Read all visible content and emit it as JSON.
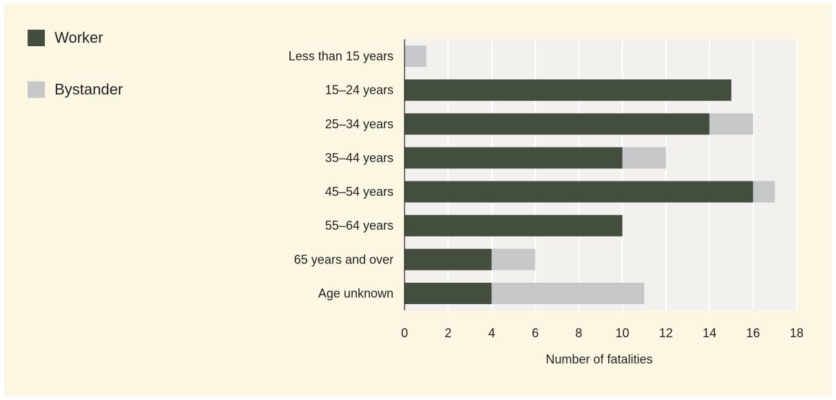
{
  "legend": {
    "worker": "Worker",
    "bystander": "Bystander"
  },
  "colors": {
    "background": "#fbf7e3",
    "plot_area": "#f3f1ed",
    "grid": "#ffffff",
    "worker": "#434e3f",
    "bystander": "#c6c7c9"
  },
  "chart_data": {
    "type": "bar",
    "orientation": "horizontal",
    "stacked": true,
    "categories": [
      "Less than 15 years",
      "15–24 years",
      "25–34 years",
      "35–44 years",
      "45–54 years",
      "55–64 years",
      "65 years and over",
      "Age unknown"
    ],
    "series": [
      {
        "name": "Worker",
        "values": [
          0,
          15,
          14,
          10,
          16,
          10,
          4,
          4
        ]
      },
      {
        "name": "Bystander",
        "values": [
          1,
          0,
          2,
          2,
          1,
          0,
          2,
          7
        ]
      }
    ],
    "xlabel": "Number  of fatalities",
    "ylabel": "",
    "xlim": [
      0,
      18
    ],
    "xticks": [
      "0",
      "2",
      "4",
      "6",
      "8",
      "10",
      "12",
      "14",
      "16",
      "18"
    ],
    "grid": "vertical",
    "legend": "top-left"
  }
}
